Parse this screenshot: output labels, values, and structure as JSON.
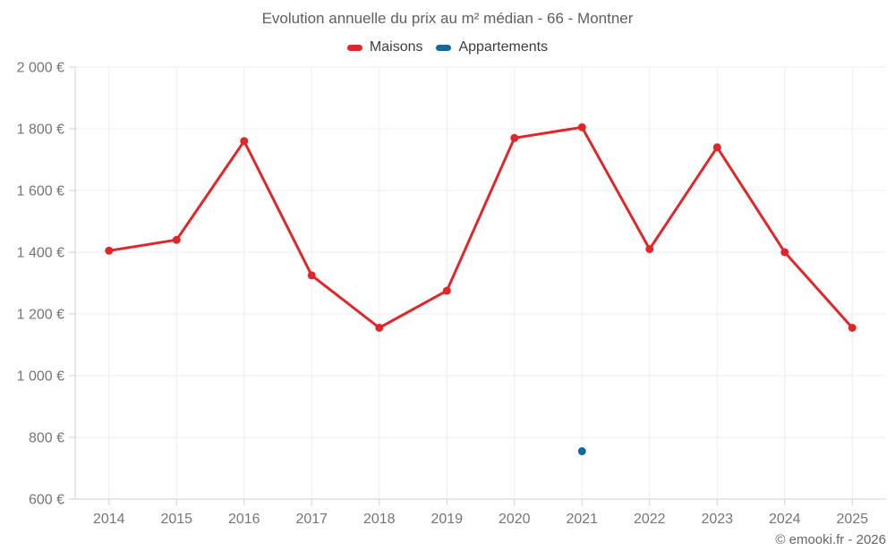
{
  "chart_data": {
    "type": "line",
    "title": "Evolution annuelle du prix au m² médian - 66 - Montner",
    "categories": [
      "2014",
      "2015",
      "2016",
      "2017",
      "2018",
      "2019",
      "2020",
      "2021",
      "2022",
      "2023",
      "2024",
      "2025"
    ],
    "series": [
      {
        "name": "Maisons",
        "color": "#e0262b",
        "values": [
          1405,
          1440,
          1760,
          1325,
          1155,
          1275,
          1770,
          1805,
          1410,
          1740,
          1400,
          1155
        ]
      },
      {
        "name": "Appartements",
        "color": "#15689c",
        "values": [
          null,
          null,
          null,
          null,
          null,
          null,
          null,
          755,
          null,
          null,
          null,
          null
        ]
      }
    ],
    "ylim": [
      600,
      2000
    ],
    "y_step": 200,
    "y_tick_labels": [
      "600 €",
      "800 €",
      "1 000 €",
      "1 200 €",
      "1 400 €",
      "1 600 €",
      "1 800 €",
      "2 000 €"
    ],
    "grid": true,
    "legend_position": "top"
  },
  "footer": {
    "credit": "© emooki.fr - 2026"
  }
}
